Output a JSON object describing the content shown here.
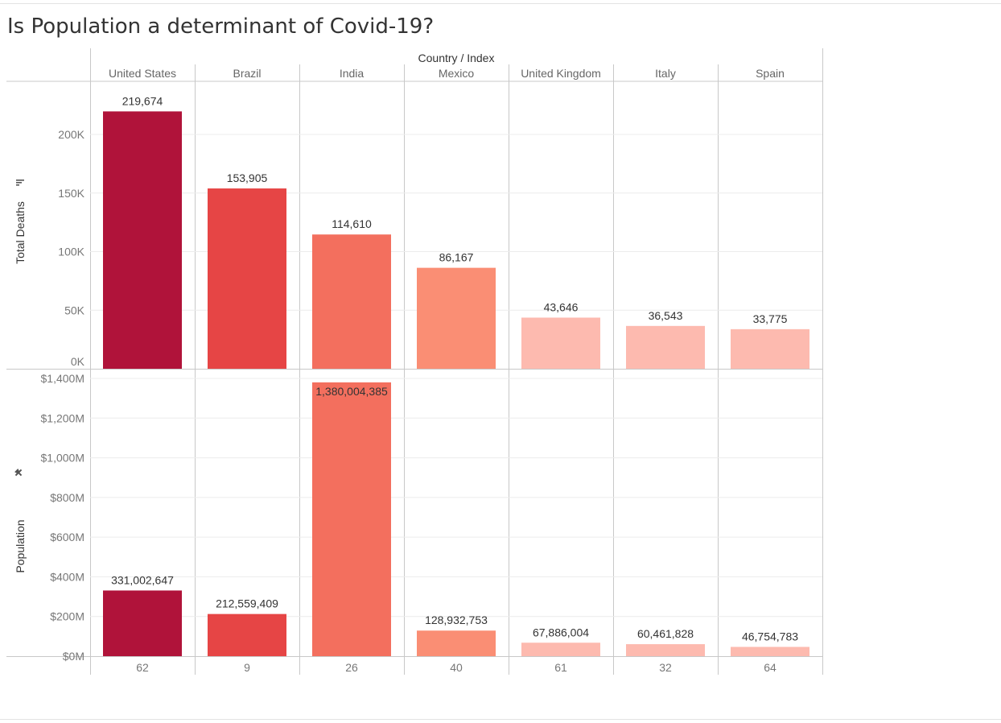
{
  "title": "Is Population a determinant of Covid-19?",
  "colors": {
    "grid": "#ececec",
    "divider": "#c8c8c8",
    "bars": [
      "#b0133a",
      "#e64545",
      "#f36f5e",
      "#fa8e74",
      "#fdbaaf",
      "#fdbaaf",
      "#fdbaaf"
    ]
  },
  "chart_data": {
    "type": "bar",
    "column_header_title": "Country / Index",
    "categories": [
      "United States",
      "Brazil",
      "India",
      "Mexico",
      "United Kingdom",
      "Italy",
      "Spain"
    ],
    "index": [
      "62",
      "9",
      "26",
      "40",
      "61",
      "32",
      "64"
    ],
    "panels": [
      {
        "ylabel": "Total Deaths",
        "ylabel_icon": "sort-descending-icon",
        "values": [
          219674,
          153905,
          114610,
          86167,
          43646,
          36543,
          33775
        ],
        "labels": [
          "219,674",
          "153,905",
          "114,610",
          "86,167",
          "43,646",
          "36,543",
          "33,775"
        ],
        "ylim": [
          0,
          222000
        ],
        "ticks": [
          0,
          50000,
          100000,
          150000,
          200000
        ],
        "tick_labels": [
          "0K",
          "50K",
          "100K",
          "150K",
          "200K"
        ]
      },
      {
        "ylabel": "Population",
        "ylabel_icon": "pin-icon",
        "values": [
          331002647,
          212559409,
          1380004385,
          128932753,
          67886004,
          60461828,
          46754783
        ],
        "labels": [
          "331,002,647",
          "212,559,409",
          "1,380,004,385",
          "128,932,753",
          "67,886,004",
          "60,461,828",
          "46,754,783"
        ],
        "ylim": [
          0,
          1400000000
        ],
        "ticks": [
          0,
          200000000,
          400000000,
          600000000,
          800000000,
          1000000000,
          1200000000,
          1400000000
        ],
        "tick_labels": [
          "$0M",
          "$200M",
          "$400M",
          "$600M",
          "$800M",
          "$1,000M",
          "$1,200M",
          "$1,400M"
        ]
      }
    ],
    "grid": true,
    "legend": "none"
  }
}
